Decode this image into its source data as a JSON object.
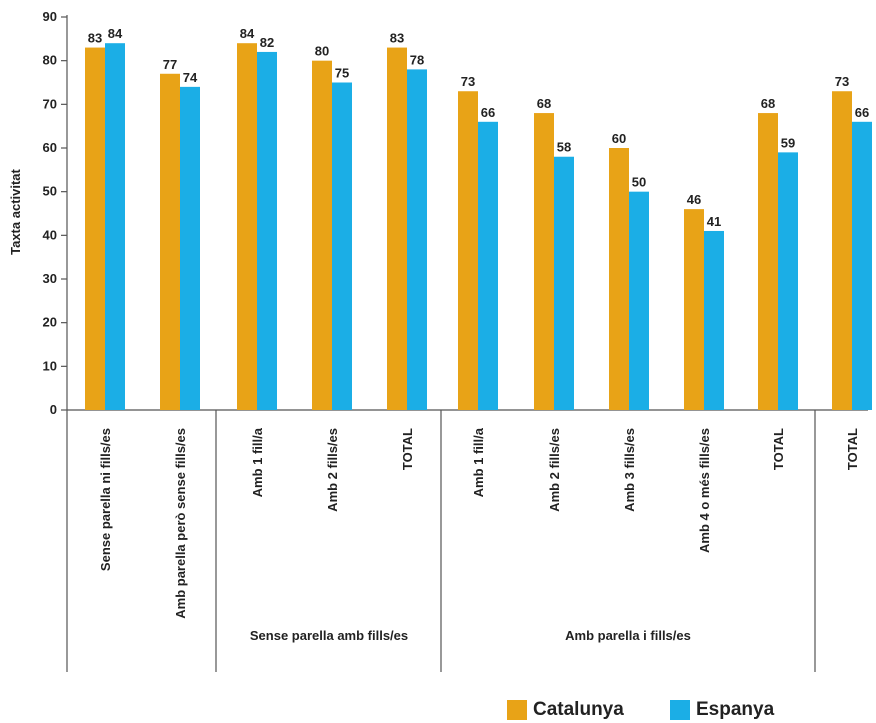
{
  "chart_data": {
    "type": "bar",
    "ylabel": "Taxta activitat",
    "ylim": [
      0,
      90
    ],
    "yticks": [
      0,
      10,
      20,
      30,
      40,
      50,
      60,
      70,
      80,
      90
    ],
    "grid": false,
    "legend_position": "bottom-right",
    "categories": [
      "Sense parella ni fills/es",
      "Amb parella però sense fills/es",
      "Amb 1 fill/a",
      "Amb 2 fills/es",
      "TOTAL",
      "Amb 1 fill/a",
      "Amb 2 fills/es",
      "Amb 3 fills/es",
      "Amb 4 o més fills/es",
      "TOTAL",
      "TOTAL"
    ],
    "groups": [
      {
        "label": "",
        "categories": [
          0
        ]
      },
      {
        "label": "",
        "categories": [
          1
        ]
      },
      {
        "label": "Sense parella amb fills/es",
        "categories": [
          2,
          3,
          4
        ]
      },
      {
        "label": "Amb parella i fills/es",
        "categories": [
          5,
          6,
          7,
          8,
          9
        ]
      },
      {
        "label": "",
        "categories": [
          10
        ]
      }
    ],
    "series": [
      {
        "name": "Catalunya",
        "color": "#E8A317",
        "values": [
          83,
          77,
          84,
          80,
          83,
          73,
          68,
          60,
          46,
          68,
          73
        ]
      },
      {
        "name": "Espanya",
        "color": "#1BAEE6",
        "values": [
          84,
          74,
          82,
          75,
          78,
          66,
          58,
          50,
          41,
          59,
          66
        ]
      }
    ]
  }
}
